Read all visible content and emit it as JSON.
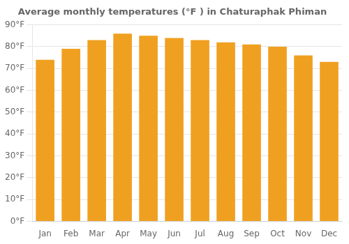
{
  "chart_data": {
    "type": "bar",
    "title": "Average monthly temperatures (°F ) in Chaturaphak Phiman",
    "categories": [
      "Jan",
      "Feb",
      "Mar",
      "Apr",
      "May",
      "Jun",
      "Jul",
      "Aug",
      "Sep",
      "Oct",
      "Nov",
      "Dec"
    ],
    "values": [
      74,
      79,
      83,
      86,
      85,
      84,
      83,
      82,
      81,
      80,
      76,
      73
    ],
    "color": "#F0A020",
    "ylim": [
      0,
      90
    ],
    "yticks": [
      {
        "value": 0,
        "label": "0°F"
      },
      {
        "value": 10,
        "label": "10°F"
      },
      {
        "value": 20,
        "label": "20°F"
      },
      {
        "value": 30,
        "label": "30°F"
      },
      {
        "value": 40,
        "label": "40°F"
      },
      {
        "value": 50,
        "label": "50°F"
      },
      {
        "value": 60,
        "label": "60°F"
      },
      {
        "value": 70,
        "label": "70°F"
      },
      {
        "value": 80,
        "label": "80°F"
      },
      {
        "value": 90,
        "label": "90°F"
      }
    ],
    "grid": true
  }
}
